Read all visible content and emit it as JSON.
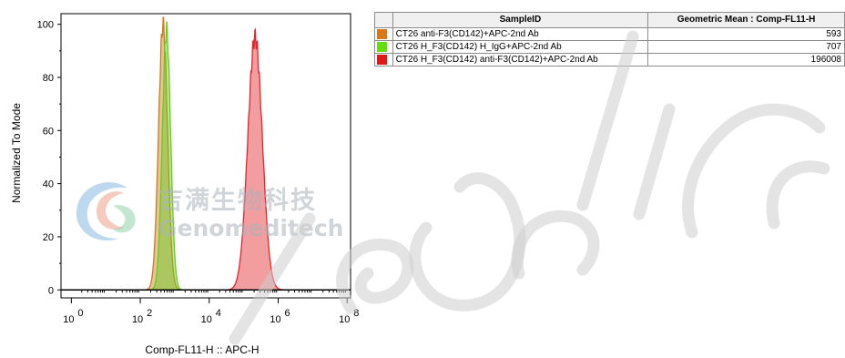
{
  "chart_data": {
    "type": "histogram",
    "xlabel": "Comp-FL11-H :: APC-H",
    "ylabel": "Normalized To Mode",
    "x_scale": "log",
    "xlim_exp": [
      -0.3,
      8.1
    ],
    "ylim": [
      -3,
      104
    ],
    "y_ticks": [
      0,
      20,
      40,
      60,
      80,
      100
    ],
    "x_ticks": [
      {
        "base": "10",
        "exp": "0",
        "value": 0
      },
      {
        "base": "10",
        "exp": "2",
        "value": 2
      },
      {
        "base": "10",
        "exp": "4",
        "value": 4
      },
      {
        "base": "10",
        "exp": "6",
        "value": 6
      },
      {
        "base": "10",
        "exp": "8",
        "value": 8
      }
    ],
    "series": [
      {
        "name": "CT26 anti-F3(CD142)+APC-2nd Ab",
        "color": "#cc7a1f",
        "center_log": 2.66,
        "sigma": 0.13,
        "peak": 100
      },
      {
        "name": "CT26 H_F3(CD142) H_IgG+APC-2nd Ab",
        "color": "#66cc1a",
        "center_log": 2.76,
        "sigma": 0.12,
        "peak": 98
      },
      {
        "name": "CT26 H_F3(CD142) anti-F3(CD142)+APC-2nd Ab",
        "color": "#e3252d",
        "center_log": 5.33,
        "sigma": 0.21,
        "peak": 95
      }
    ]
  },
  "table": {
    "header_sample": "SampleID",
    "header_stat": "Geometric Mean : Comp-FL11-H",
    "rows": [
      {
        "color": "#d9781a",
        "name": "CT26 anti-F3(CD142)+APC-2nd Ab",
        "value": "593"
      },
      {
        "color": "#66dd11",
        "name": "CT26 H_F3(CD142) H_IgG+APC-2nd Ab",
        "value": "707"
      },
      {
        "color": "#e01818",
        "name": "CT26 H_F3(CD142) anti-F3(CD142)+APC-2nd Ab",
        "value": "196008"
      }
    ]
  },
  "watermark": {
    "cn": "吉满生物科技",
    "en": "Genomeditech"
  }
}
